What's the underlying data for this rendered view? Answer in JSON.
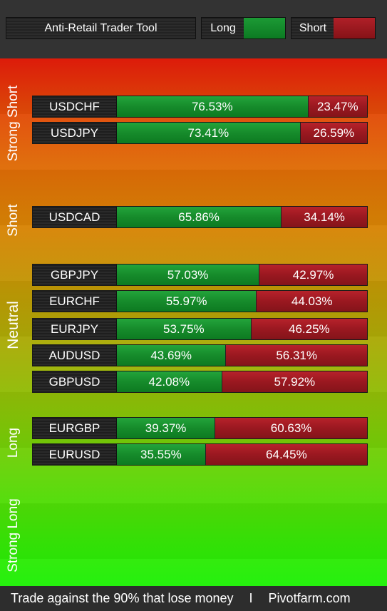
{
  "header": {
    "title": "Anti-Retail Trader Tool",
    "legend_long_label": "Long",
    "legend_short_label": "Short",
    "long_color": "#168b2b",
    "short_color": "#9a1820"
  },
  "zones": {
    "strong_short": "Strong Short",
    "short": "Short",
    "neutral": "Neutral",
    "long": "Long",
    "strong_long": "Strong Long"
  },
  "rows": [
    {
      "pair": "USDCHF",
      "long_pct": 76.53,
      "long_label": "76.53%",
      "short_label": "23.47%"
    },
    {
      "pair": "USDJPY",
      "long_pct": 73.41,
      "long_label": "73.41%",
      "short_label": "26.59%"
    },
    {
      "pair": "USDCAD",
      "long_pct": 65.86,
      "long_label": "65.86%",
      "short_label": "34.14%"
    },
    {
      "pair": "GBPJPY",
      "long_pct": 57.03,
      "long_label": "57.03%",
      "short_label": "42.97%"
    },
    {
      "pair": "EURCHF",
      "long_pct": 55.97,
      "long_label": "55.97%",
      "short_label": "44.03%"
    },
    {
      "pair": "EURJPY",
      "long_pct": 53.75,
      "long_label": "53.75%",
      "short_label": "46.25%"
    },
    {
      "pair": "AUDUSD",
      "long_pct": 43.69,
      "long_label": "43.69%",
      "short_label": "56.31%"
    },
    {
      "pair": "GBPUSD",
      "long_pct": 42.08,
      "long_label": "42.08%",
      "short_label": "57.92%"
    },
    {
      "pair": "EURGBP",
      "long_pct": 39.37,
      "long_label": "39.37%",
      "short_label": "60.63%"
    },
    {
      "pair": "EURUSD",
      "long_pct": 35.55,
      "long_label": "35.55%",
      "short_label": "64.45%"
    }
  ],
  "footer": {
    "tagline": "Trade against the 90% that lose money",
    "separator": "I",
    "site": "Pivotfarm.com"
  }
}
